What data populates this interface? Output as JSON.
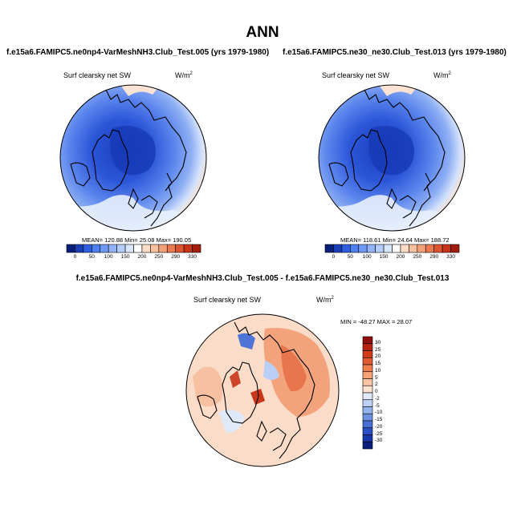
{
  "season": "ANN",
  "panels": [
    {
      "case_title": "f.e15a6.FAMIPC5.ne0np4-VarMeshNH3.Club_Test.005 (yrs 1979-1980)",
      "variable": "Surf clearsky net SW",
      "units": "W/m",
      "units_exp": "2",
      "stats": "MEAN= 120.88  Min= 25.08  Max= 190.05"
    },
    {
      "case_title": "f.e15a6.FAMIPC5.ne30_ne30.Club_Test.013 (yrs 1979-1980)",
      "variable": "Surf clearsky net SW",
      "units": "W/m",
      "units_exp": "2",
      "stats": "MEAN= 118.61  Min= 24.64  Max= 188.72"
    }
  ],
  "diff_panel": {
    "title": "f.e15a6.FAMIPC5.ne0np4-VarMeshNH3.Club_Test.005 - f.e15a6.FAMIPC5.ne30_ne30.Club_Test.013",
    "variable": "Surf clearsky net SW",
    "units": "W/m",
    "units_exp": "2",
    "stats": "MIN = -48.27  MAX =  28.07"
  },
  "chart_data": [
    {
      "type": "heatmap",
      "projection": "north-polar-stereographic",
      "title": "f.e15a6.FAMIPC5.ne0np4-VarMeshNH3.Club_Test.005 (yrs 1979-1980)",
      "variable": "Surf clearsky net SW",
      "units": "W/m2",
      "mean": 120.88,
      "min": 25.08,
      "max": 190.05,
      "colorbar_levels": [
        "0",
        "50",
        "100",
        "150",
        "200",
        "250",
        "290",
        "330"
      ],
      "colorbar_colors": [
        "#08207a",
        "#1a3fb8",
        "#2f5fe0",
        "#4f7ff0",
        "#7099f5",
        "#93b3f8",
        "#b5cdfa",
        "#d7e6fb",
        "#ffffff",
        "#fbdcc8",
        "#f7c0a0",
        "#f2a07a",
        "#ea7a52",
        "#dd5430",
        "#c83418",
        "#a41c0c"
      ]
    },
    {
      "type": "heatmap",
      "projection": "north-polar-stereographic",
      "title": "f.e15a6.FAMIPC5.ne30_ne30.Club_Test.013 (yrs 1979-1980)",
      "variable": "Surf clearsky net SW",
      "units": "W/m2",
      "mean": 118.61,
      "min": 24.64,
      "max": 188.72,
      "colorbar_levels": [
        "0",
        "50",
        "100",
        "150",
        "200",
        "250",
        "290",
        "330"
      ],
      "colorbar_colors": [
        "#08207a",
        "#1a3fb8",
        "#2f5fe0",
        "#4f7ff0",
        "#7099f5",
        "#93b3f8",
        "#b5cdfa",
        "#d7e6fb",
        "#ffffff",
        "#fbdcc8",
        "#f7c0a0",
        "#f2a07a",
        "#ea7a52",
        "#dd5430",
        "#c83418",
        "#a41c0c"
      ]
    },
    {
      "type": "heatmap",
      "projection": "north-polar-stereographic",
      "title": "f.e15a6.FAMIPC5.ne0np4-VarMeshNH3.Club_Test.005 - f.e15a6.FAMIPC5.ne30_ne30.Club_Test.013",
      "variable": "Surf clearsky net SW",
      "units": "W/m2",
      "min": -48.27,
      "max": 28.07,
      "colorbar_levels": [
        "30",
        "25",
        "20",
        "15",
        "10",
        "5",
        "2",
        "0",
        "-2",
        "-5",
        "-10",
        "-15",
        "-20",
        "-25",
        "-30"
      ],
      "colorbar_colors": [
        "#8e0f0c",
        "#b52210",
        "#d23c1c",
        "#e35a32",
        "#ef7e4e",
        "#f5a377",
        "#f9c5a3",
        "#fde4d1",
        "#dfe9f9",
        "#bcd1f3",
        "#95b4ec",
        "#6d92e2",
        "#476fd6",
        "#2a4fc4",
        "#1536a8",
        "#0a1f7c"
      ]
    }
  ]
}
